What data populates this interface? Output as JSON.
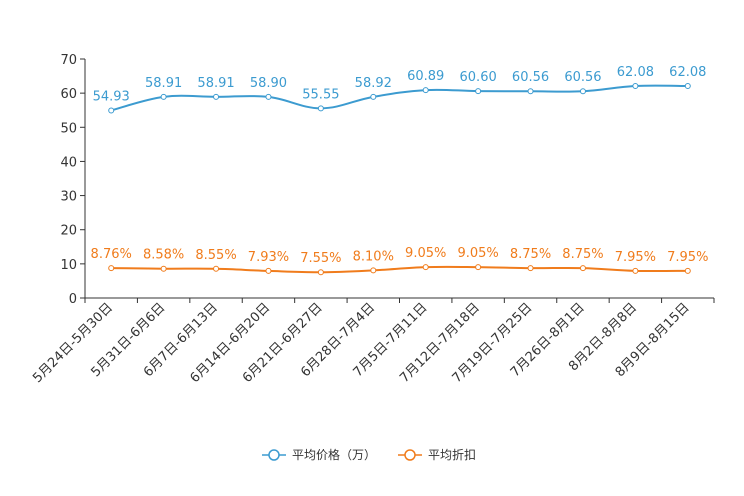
{
  "chart_data": {
    "type": "line",
    "title": "",
    "xlabel": "",
    "ylabel": "",
    "ylim": [
      0,
      70
    ],
    "yticks": [
      0,
      10,
      20,
      30,
      40,
      50,
      60,
      70
    ],
    "grid": false,
    "legend_position": "bottom-center",
    "categories": [
      "5月24日-5月30日",
      "5月31日-6月6日",
      "6月7日-6月13日",
      "6月14日-6月20日",
      "6月21日-6月27日",
      "6月28日-7月4日",
      "7月5日-7月11日",
      "7月12日-7月18日",
      "7月19日-7月25日",
      "7月26日-8月1日",
      "8月2日-8月8日",
      "8月9日-8月15日"
    ],
    "series": [
      {
        "name": "平均价格（万）",
        "color": "#3c9bd0",
        "values": [
          54.93,
          58.91,
          58.91,
          58.9,
          55.55,
          58.92,
          60.89,
          60.6,
          60.56,
          60.56,
          62.08,
          62.08
        ],
        "labels": [
          "54.93",
          "58.91",
          "58.91",
          "58.90",
          "55.55",
          "58.92",
          "60.89",
          "60.60",
          "60.56",
          "60.56",
          "62.08",
          "62.08"
        ]
      },
      {
        "name": "平均折扣",
        "color": "#f07c1c",
        "values": [
          8.76,
          8.58,
          8.55,
          7.93,
          7.55,
          8.1,
          9.05,
          9.05,
          8.75,
          8.75,
          7.95,
          7.95
        ],
        "labels": [
          "8.76%",
          "8.58%",
          "8.55%",
          "7.93%",
          "7.55%",
          "8.10%",
          "9.05%",
          "9.05%",
          "8.75%",
          "8.75%",
          "7.95%",
          "7.95%"
        ]
      }
    ]
  }
}
